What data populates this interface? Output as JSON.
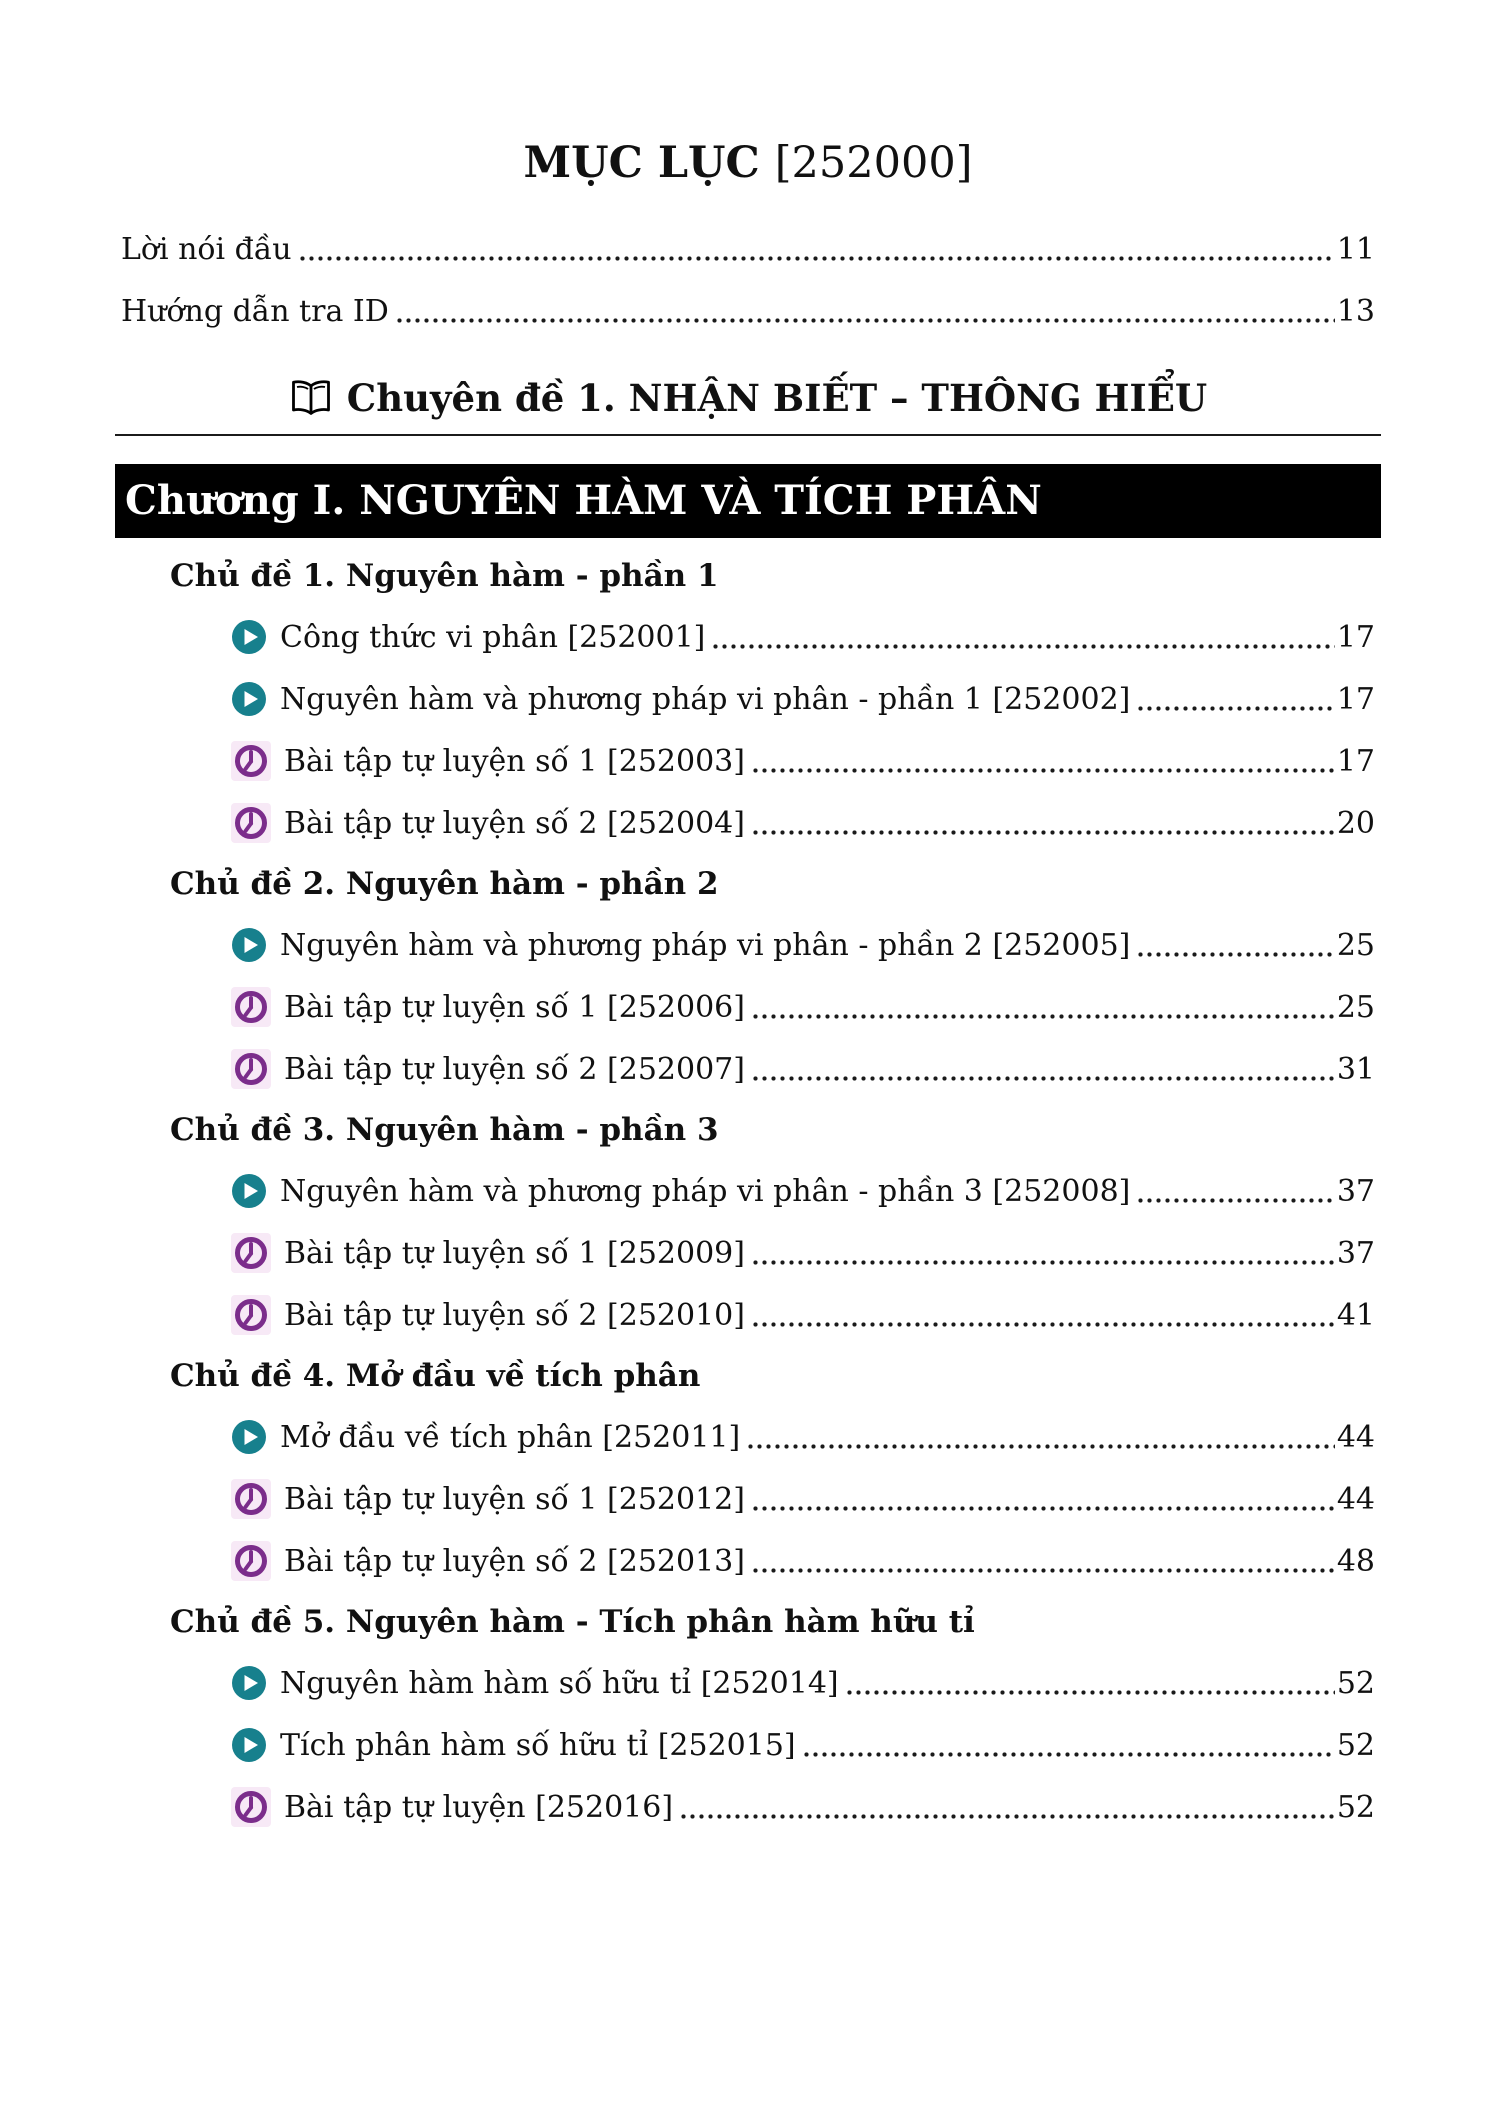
{
  "title": {
    "main": "MỤC LỤC",
    "id": "[252000]"
  },
  "front_matter": [
    {
      "label": "Lời nói đầu",
      "page": "11"
    },
    {
      "label": "Hướng dẫn tra ID",
      "page": "13"
    }
  ],
  "section_heading": {
    "icon": "open-book-icon",
    "label": "Chuyên đề 1. NHẬN BIẾT – THÔNG HIỂU"
  },
  "chapter_bar": {
    "label": "Chương I. NGUYÊN HÀM VÀ TÍCH PHÂN"
  },
  "topics": [
    {
      "title": "Chủ đề 1. Nguyên hàm - phần 1",
      "items": [
        {
          "icon": "play-icon",
          "label": "Công thức vi phân [252001]",
          "page": "17"
        },
        {
          "icon": "play-icon",
          "label": "Nguyên hàm và phương pháp vi phân - phần 1 [252002]",
          "page": "17"
        },
        {
          "icon": "clock-icon",
          "label": "Bài tập tự luyện số 1 [252003]",
          "page": "17"
        },
        {
          "icon": "clock-icon",
          "label": "Bài tập tự luyện số 2 [252004]",
          "page": "20"
        }
      ]
    },
    {
      "title": "Chủ đề 2. Nguyên hàm - phần 2",
      "items": [
        {
          "icon": "play-icon",
          "label": "Nguyên hàm và phương pháp vi phân - phần 2 [252005]",
          "page": "25"
        },
        {
          "icon": "clock-icon",
          "label": "Bài tập tự luyện số 1 [252006]",
          "page": "25"
        },
        {
          "icon": "clock-icon",
          "label": "Bài tập tự luyện số 2 [252007]",
          "page": "31"
        }
      ]
    },
    {
      "title": "Chủ đề 3. Nguyên hàm - phần 3",
      "items": [
        {
          "icon": "play-icon",
          "label": "Nguyên hàm và phương pháp vi phân - phần 3 [252008]",
          "page": "37"
        },
        {
          "icon": "clock-icon",
          "label": "Bài tập tự luyện số 1 [252009]",
          "page": "37"
        },
        {
          "icon": "clock-icon",
          "label": "Bài tập tự luyện số 2 [252010]",
          "page": "41"
        }
      ]
    },
    {
      "title": "Chủ đề 4. Mở đầu về tích phân",
      "items": [
        {
          "icon": "play-icon",
          "label": "Mở đầu về tích phân [252011]",
          "page": "44"
        },
        {
          "icon": "clock-icon",
          "label": "Bài tập tự luyện số 1 [252012]",
          "page": "44"
        },
        {
          "icon": "clock-icon",
          "label": "Bài tập tự luyện số 2 [252013]",
          "page": "48"
        }
      ]
    },
    {
      "title": "Chủ đề 5. Nguyên hàm - Tích phân hàm hữu tỉ",
      "items": [
        {
          "icon": "play-icon",
          "label": "Nguyên hàm hàm số hữu tỉ [252014]",
          "page": "52"
        },
        {
          "icon": "play-icon",
          "label": "Tích phân hàm số hữu tỉ [252015]",
          "page": "52"
        },
        {
          "icon": "clock-icon",
          "label": "Bài tập tự luyện [252016]",
          "page": "52"
        }
      ]
    }
  ],
  "colors": {
    "play_icon": "#17808D",
    "clock_icon": "#7B2D8B",
    "clock_icon_bg": "#F7E9F6",
    "chapter_bar_bg": "#000000",
    "chapter_bar_text": "#FFFFFF"
  }
}
